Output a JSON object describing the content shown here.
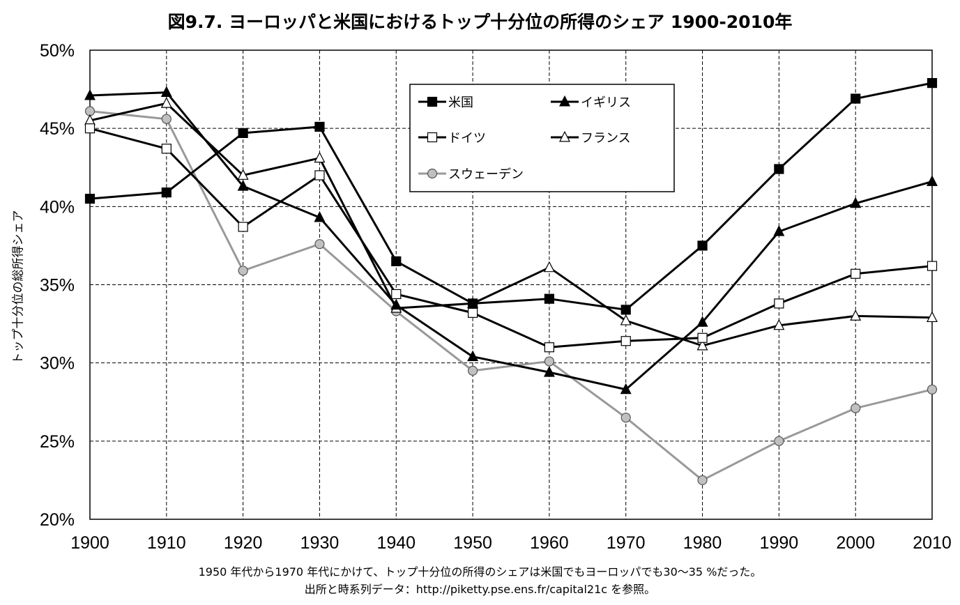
{
  "chart_data": {
    "type": "line",
    "title": "図9.7. ヨーロッパと米国におけるトップ十分位の所得のシェア 1900-2010年",
    "ylabel": "トップ十分位の総所得シェア",
    "xlabel": "",
    "x": [
      1900,
      1910,
      1920,
      1930,
      1940,
      1950,
      1960,
      1970,
      1980,
      1990,
      2000,
      2010
    ],
    "xlim": [
      1900,
      2010
    ],
    "ylim": [
      20,
      50
    ],
    "yticks": [
      20,
      25,
      30,
      35,
      40,
      45,
      50
    ],
    "ytick_labels": [
      "20%",
      "25%",
      "30%",
      "35%",
      "40%",
      "45%",
      "50%"
    ],
    "xtick_labels": [
      "1900",
      "1910",
      "1920",
      "1930",
      "1940",
      "1950",
      "1960",
      "1970",
      "1980",
      "1990",
      "2000",
      "2010"
    ],
    "grid": true,
    "legend_position": "top-center",
    "series": [
      {
        "name": "米国",
        "marker": "square-filled",
        "color": "#000000",
        "values": [
          40.5,
          40.9,
          44.7,
          45.1,
          36.5,
          33.8,
          34.1,
          33.4,
          37.5,
          42.4,
          46.9,
          47.9
        ]
      },
      {
        "name": "イギリス",
        "marker": "triangle-filled",
        "color": "#000000",
        "values": [
          47.1,
          47.3,
          41.3,
          39.3,
          33.7,
          30.4,
          29.4,
          28.3,
          32.6,
          38.4,
          40.2,
          41.6
        ]
      },
      {
        "name": "ドイツ",
        "marker": "square-open",
        "color": "#000000",
        "values": [
          45.0,
          43.7,
          38.7,
          42.0,
          34.4,
          33.2,
          31.0,
          31.4,
          31.6,
          33.8,
          35.7,
          36.2
        ]
      },
      {
        "name": "フランス",
        "marker": "triangle-open",
        "color": "#000000",
        "values": [
          45.5,
          46.6,
          42.0,
          43.1,
          33.5,
          33.8,
          36.1,
          32.7,
          31.1,
          32.4,
          33.0,
          32.9
        ]
      },
      {
        "name": "スウェーデン",
        "marker": "circle-gray",
        "color": "#999999",
        "values": [
          46.1,
          45.6,
          35.9,
          37.6,
          33.3,
          29.5,
          30.1,
          26.5,
          22.5,
          25.0,
          27.1,
          28.3
        ]
      }
    ]
  },
  "footnote": {
    "line1": "1950 年代から1970 年代にかけて、トップ十分位の所得のシェアは米国でもヨーロッパでも30～35 %だった。",
    "line2": "出所と時系列データ：http://piketty.pse.ens.fr/capital21c を参照。"
  }
}
